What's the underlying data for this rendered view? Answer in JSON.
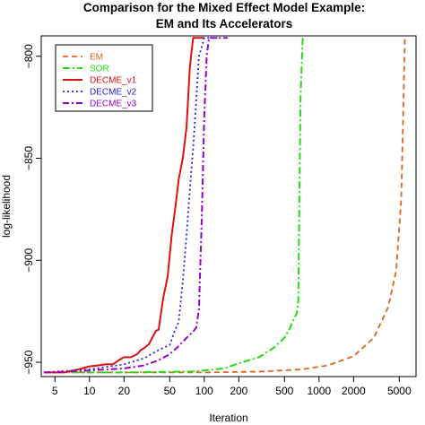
{
  "chart_data": {
    "type": "line",
    "title": "Comparison for the Mixed Effect Model Example:",
    "subtitle": "EM and Its Accelerators",
    "xlabel": "Iteration",
    "ylabel": "log-likelihood",
    "xscale": "log",
    "xlim": [
      3.8,
      7000
    ],
    "ylim": [
      -957,
      -790
    ],
    "x_ticks": [
      5,
      10,
      20,
      50,
      100,
      200,
      500,
      1000,
      2000,
      5000
    ],
    "x_tick_labels": [
      "5",
      "10",
      "20",
      "50",
      "100",
      "200",
      "500",
      "1000",
      "2000",
      "5000"
    ],
    "y_ticks": [
      -800,
      -850,
      -900,
      -950
    ],
    "y_tick_labels": [
      "−800",
      "−850",
      "−900",
      "−950"
    ],
    "grid": false,
    "legend_position": "top-left",
    "series": [
      {
        "name": "EM",
        "color": "#e0631a",
        "dash": "6,4",
        "width": 1.8,
        "x": [
          4,
          10,
          30,
          100,
          300,
          700,
          1200,
          2000,
          3000,
          4000,
          4700,
          5200,
          5600
        ],
        "y": [
          -955,
          -955,
          -955,
          -955,
          -954.6,
          -953.5,
          -951.5,
          -947,
          -938,
          -923,
          -905,
          -870,
          -791
        ]
      },
      {
        "name": "SOR",
        "color": "#22dd11",
        "dash": "8,3,2,3",
        "width": 2,
        "x": [
          4,
          20,
          80,
          150,
          200,
          300,
          400,
          500,
          560,
          600,
          640,
          660,
          670,
          690,
          720
        ],
        "y": [
          -955,
          -955,
          -954.5,
          -953,
          -950.5,
          -947.5,
          -943,
          -938,
          -933,
          -929,
          -926,
          -920,
          -880,
          -820,
          -791
        ]
      },
      {
        "name": "DECME_v1",
        "color": "#e01010",
        "dash": "",
        "width": 2,
        "x": [
          4,
          6,
          8,
          10,
          12,
          14,
          16,
          18,
          20,
          23,
          26,
          28,
          30,
          33,
          36,
          38,
          40,
          44,
          48,
          52,
          56,
          60,
          65,
          70,
          75,
          80,
          100
        ],
        "y": [
          -955,
          -955,
          -953.5,
          -952,
          -951.5,
          -951,
          -951,
          -949,
          -947.5,
          -947.5,
          -946,
          -944,
          -943,
          -941,
          -937,
          -934.5,
          -934,
          -918,
          -908,
          -888,
          -874,
          -860,
          -850,
          -835,
          -805,
          -791,
          -791
        ]
      },
      {
        "name": "DECME_v2",
        "color": "#2222dd",
        "dash": "2,3",
        "width": 1.8,
        "x": [
          4,
          10,
          20,
          30,
          40,
          50,
          55,
          60,
          65,
          70,
          75,
          80,
          85,
          90,
          100,
          130
        ],
        "y": [
          -955,
          -953.5,
          -951,
          -948,
          -944,
          -941.5,
          -935,
          -930,
          -910,
          -888,
          -865,
          -845,
          -822,
          -800,
          -791,
          -791
        ]
      },
      {
        "name": "DECME_v3",
        "color": "#9900cc",
        "dash": "7,3,2,3",
        "width": 2,
        "x": [
          4,
          10,
          20,
          30,
          40,
          50,
          60,
          70,
          80,
          85,
          90,
          95,
          100,
          105,
          110,
          160
        ],
        "y": [
          -955,
          -954,
          -953,
          -951.5,
          -949,
          -946,
          -942,
          -938,
          -935,
          -933,
          -924,
          -880,
          -830,
          -800,
          -791,
          -791
        ]
      }
    ]
  }
}
